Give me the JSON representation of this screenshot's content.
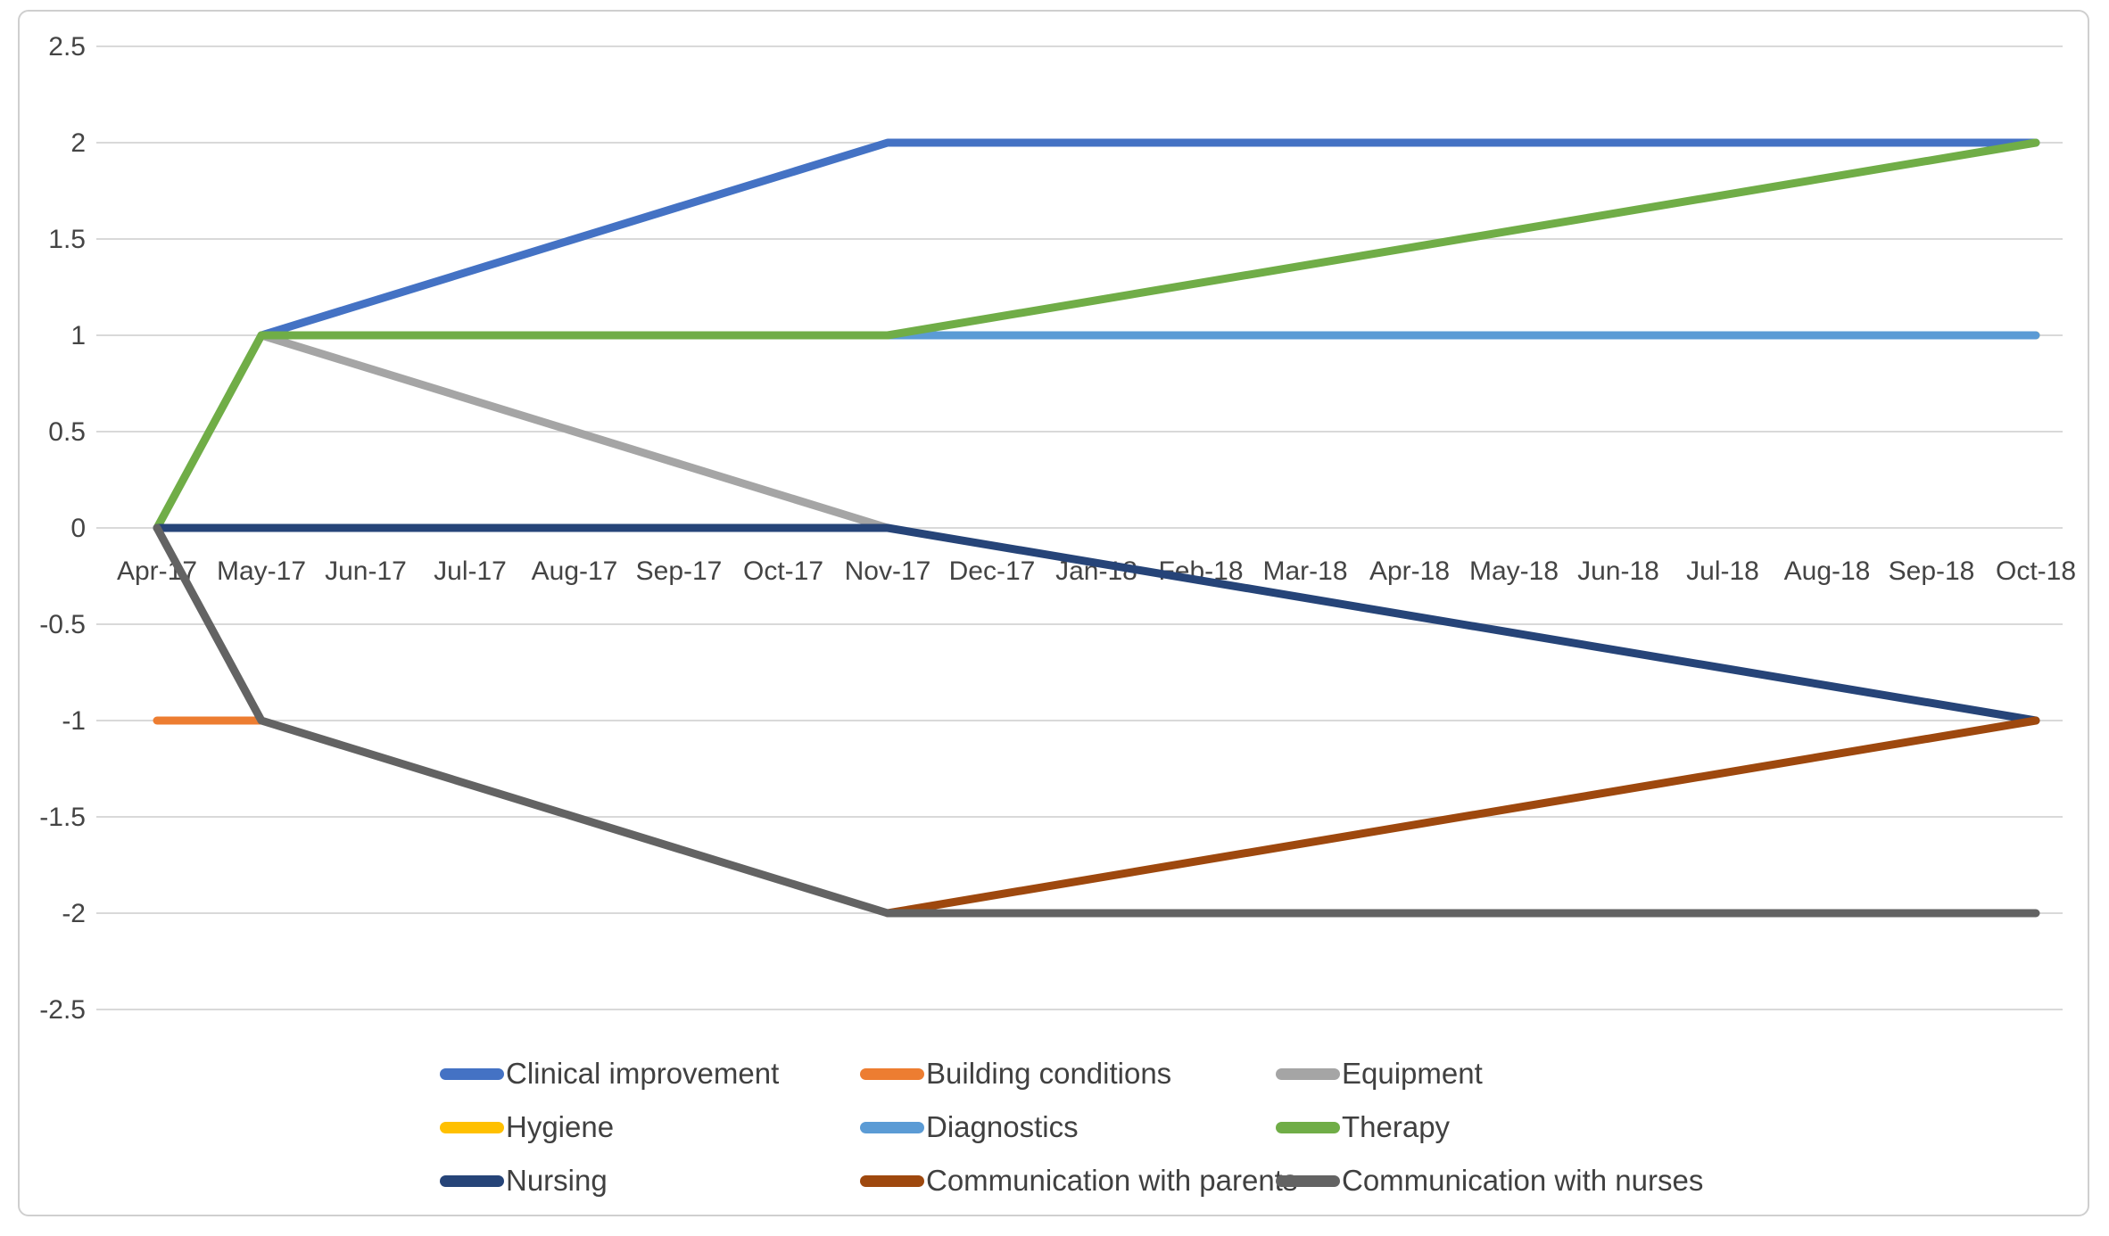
{
  "chart_data": {
    "type": "line",
    "categories": [
      "Apr-17",
      "May-17",
      "Jun-17",
      "Jul-17",
      "Aug-17",
      "Sep-17",
      "Oct-17",
      "Nov-17",
      "Dec-17",
      "Jan-18",
      "Feb-18",
      "Mar-18",
      "Apr-18",
      "May-18",
      "Jun-18",
      "Jul-18",
      "Aug-18",
      "Sep-18",
      "Oct-18"
    ],
    "y_tick_labels": [
      "2.5",
      "2",
      "1.5",
      "1",
      "0.5",
      "0",
      "-0.5",
      "-1",
      "-1.5",
      "-2",
      "-2.5"
    ],
    "ylim": [
      -2.5,
      2.5
    ],
    "grid": "horizontal",
    "legend_position": "bottom",
    "series": [
      {
        "name": "Clinical improvement",
        "color": "#4472C4",
        "values": [
          null,
          1,
          null,
          null,
          null,
          null,
          null,
          2,
          null,
          null,
          null,
          null,
          null,
          null,
          null,
          null,
          null,
          null,
          2
        ]
      },
      {
        "name": "Building conditions",
        "color": "#ED7D31",
        "values": [
          -1,
          -1,
          null,
          null,
          null,
          null,
          null,
          null,
          null,
          null,
          null,
          null,
          null,
          null,
          null,
          null,
          null,
          null,
          null
        ]
      },
      {
        "name": "Equipment",
        "color": "#A5A5A5",
        "values": [
          null,
          1,
          null,
          null,
          null,
          null,
          null,
          0,
          null,
          null,
          null,
          null,
          null,
          null,
          null,
          null,
          null,
          null,
          null
        ]
      },
      {
        "name": "Hygiene",
        "color": "#FFC000",
        "values": [
          null,
          1,
          null,
          null,
          null,
          null,
          null,
          null,
          null,
          null,
          null,
          null,
          null,
          null,
          null,
          null,
          null,
          null,
          1
        ]
      },
      {
        "name": "Diagnostics",
        "color": "#5B9BD5",
        "values": [
          null,
          1,
          null,
          null,
          null,
          null,
          null,
          null,
          null,
          null,
          null,
          null,
          null,
          null,
          null,
          null,
          null,
          null,
          1
        ]
      },
      {
        "name": "Therapy",
        "color": "#70AD47",
        "values": [
          0,
          1,
          null,
          null,
          null,
          null,
          null,
          1,
          null,
          null,
          null,
          null,
          null,
          null,
          null,
          null,
          null,
          null,
          2
        ]
      },
      {
        "name": "Nursing",
        "color": "#264478",
        "values": [
          0,
          null,
          null,
          null,
          null,
          null,
          null,
          0,
          null,
          null,
          null,
          null,
          null,
          null,
          null,
          null,
          null,
          null,
          -1
        ]
      },
      {
        "name": "Communication with parents",
        "color": "#9E480E",
        "values": [
          null,
          null,
          null,
          null,
          null,
          null,
          null,
          -2,
          null,
          null,
          null,
          null,
          null,
          null,
          null,
          null,
          null,
          null,
          -1
        ]
      },
      {
        "name": "Communication with nurses",
        "color": "#636363",
        "values": [
          0,
          -1,
          null,
          null,
          null,
          null,
          null,
          -2,
          null,
          null,
          null,
          null,
          null,
          null,
          null,
          null,
          null,
          null,
          -2
        ]
      }
    ]
  }
}
